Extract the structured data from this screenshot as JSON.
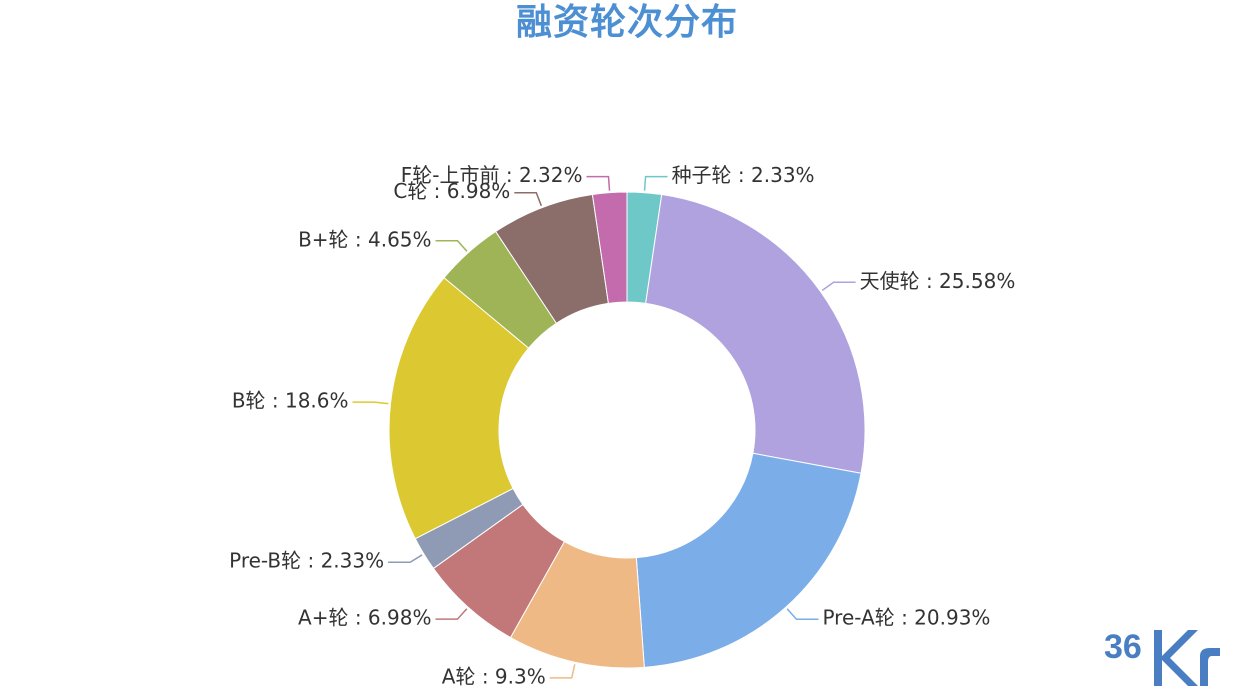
{
  "chart_data": {
    "type": "pie",
    "variant": "donut",
    "title": "融资轮次分布",
    "label_separator": " : ",
    "label_suffix": "%",
    "start_angle_deg": 0,
    "direction": "clockwise",
    "slices": [
      {
        "name": "种子轮",
        "value": 2.33,
        "color": "#6ec8c8"
      },
      {
        "name": "天使轮",
        "value": 25.58,
        "color": "#afa2de"
      },
      {
        "name": "Pre-A轮",
        "value": 20.93,
        "color": "#7baee8"
      },
      {
        "name": "A轮",
        "value": 9.3,
        "color": "#efb985"
      },
      {
        "name": "A+轮",
        "value": 6.98,
        "color": "#c27879"
      },
      {
        "name": "Pre-B轮",
        "value": 2.33,
        "color": "#8f9bb4"
      },
      {
        "name": "B轮",
        "value": 18.6,
        "color": "#dcc931"
      },
      {
        "name": "B+轮",
        "value": 4.65,
        "color": "#9fb456"
      },
      {
        "name": "C轮",
        "value": 6.98,
        "color": "#8b6d69"
      },
      {
        "name": "F轮-上市前",
        "value": 2.32,
        "color": "#c36bac"
      }
    ]
  },
  "brand": {
    "text": "36Kr",
    "color": "#4a7ec3"
  }
}
